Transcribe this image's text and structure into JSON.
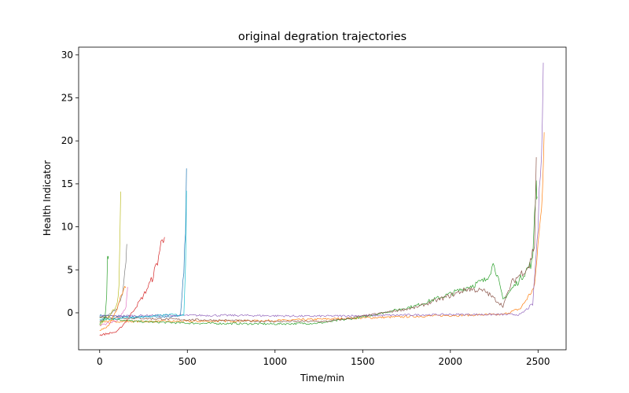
{
  "chart_data": {
    "type": "line",
    "title": "original degration trajectories",
    "xlabel": "Time/min",
    "ylabel": "Health Indicator",
    "xlim": [
      -120,
      2660
    ],
    "ylim": [
      -4.3,
      30.9
    ],
    "xticks": [
      0,
      500,
      1000,
      1500,
      2000,
      2500
    ],
    "yticks": [
      0,
      5,
      10,
      15,
      20,
      25,
      30
    ],
    "grid": false,
    "legend": "none",
    "series": [
      {
        "color": "#1f77b4",
        "points": [
          [
            0,
            -0.3
          ],
          [
            100,
            -0.4
          ],
          [
            200,
            -0.5
          ],
          [
            300,
            -0.4
          ],
          [
            400,
            -0.5
          ],
          [
            460,
            -0.3
          ],
          [
            470,
            2.0
          ],
          [
            480,
            5.0
          ],
          [
            490,
            10.0
          ],
          [
            495,
            16.8
          ]
        ]
      },
      {
        "color": "#ff7f0e",
        "points": [
          [
            0,
            -1.0
          ],
          [
            500,
            -1.0
          ],
          [
            1000,
            -0.9
          ],
          [
            1500,
            -0.6
          ],
          [
            2000,
            -0.3
          ],
          [
            2300,
            -0.2
          ],
          [
            2400,
            0.5
          ],
          [
            2480,
            3.0
          ],
          [
            2500,
            8.0
          ],
          [
            2520,
            12.0
          ],
          [
            2535,
            21.0
          ]
        ]
      },
      {
        "color": "#2ca02c",
        "points": [
          [
            0,
            -0.5
          ],
          [
            200,
            -1.0
          ],
          [
            500,
            -1.2
          ],
          [
            1000,
            -1.3
          ],
          [
            1250,
            -1.2
          ],
          [
            1500,
            -0.5
          ],
          [
            1800,
            0.8
          ],
          [
            2000,
            2.2
          ],
          [
            2200,
            3.8
          ],
          [
            2250,
            5.8
          ],
          [
            2300,
            1.5
          ],
          [
            2400,
            4.0
          ],
          [
            2470,
            6.0
          ],
          [
            2480,
            12.0
          ],
          [
            2490,
            15.0
          ],
          [
            2495,
            13.5
          ]
        ]
      },
      {
        "color": "#d62728",
        "points": [
          [
            0,
            -2.6
          ],
          [
            100,
            -2.2
          ],
          [
            150,
            -1.0
          ],
          [
            200,
            0.5
          ],
          [
            250,
            2.0
          ],
          [
            300,
            4.0
          ],
          [
            330,
            6.0
          ],
          [
            350,
            8.0
          ],
          [
            370,
            8.8
          ]
        ]
      },
      {
        "color": "#9467bd",
        "points": [
          [
            0,
            -0.4
          ],
          [
            300,
            -0.3
          ],
          [
            800,
            -0.3
          ],
          [
            1200,
            -0.4
          ],
          [
            1600,
            -0.3
          ],
          [
            2000,
            -0.2
          ],
          [
            2400,
            -0.2
          ],
          [
            2470,
            1.0
          ],
          [
            2500,
            10.0
          ],
          [
            2520,
            20.0
          ],
          [
            2530,
            29.1
          ]
        ]
      },
      {
        "color": "#8c564b",
        "points": [
          [
            0,
            -0.5
          ],
          [
            500,
            -0.8
          ],
          [
            1000,
            -1.0
          ],
          [
            1300,
            -1.0
          ],
          [
            1500,
            -0.4
          ],
          [
            1800,
            0.6
          ],
          [
            2000,
            2.0
          ],
          [
            2100,
            2.8
          ],
          [
            2200,
            2.5
          ],
          [
            2300,
            0.8
          ],
          [
            2350,
            3.5
          ],
          [
            2400,
            4.5
          ],
          [
            2450,
            5.5
          ],
          [
            2480,
            8.0
          ],
          [
            2490,
            18.1
          ]
        ]
      },
      {
        "color": "#e377c2",
        "points": [
          [
            0,
            -1.5
          ],
          [
            100,
            -0.9
          ],
          [
            150,
            0.5
          ],
          [
            160,
            3.0
          ]
        ]
      },
      {
        "color": "#7f7f7f",
        "points": [
          [
            0,
            -1.0
          ],
          [
            100,
            0.5
          ],
          [
            130,
            2.0
          ],
          [
            150,
            6.0
          ],
          [
            155,
            8.0
          ]
        ]
      },
      {
        "color": "#bcbd22",
        "points": [
          [
            0,
            -1.5
          ],
          [
            50,
            -0.5
          ],
          [
            100,
            1.0
          ],
          [
            110,
            3.0
          ],
          [
            120,
            14.1
          ]
        ]
      },
      {
        "color": "#17becf",
        "points": [
          [
            0,
            -0.8
          ],
          [
            300,
            -0.4
          ],
          [
            400,
            -0.2
          ],
          [
            480,
            -0.3
          ],
          [
            490,
            6.0
          ],
          [
            495,
            14.2
          ]
        ]
      },
      {
        "color": "#2ca02c",
        "points": [
          [
            0,
            -1.3
          ],
          [
            30,
            -0.5
          ],
          [
            40,
            2.0
          ],
          [
            45,
            6.0
          ],
          [
            50,
            6.6
          ]
        ]
      },
      {
        "color": "#ff7f0e",
        "points": [
          [
            0,
            -2.0
          ],
          [
            50,
            -1.5
          ],
          [
            100,
            0.5
          ],
          [
            130,
            2.5
          ],
          [
            150,
            2.9
          ]
        ]
      }
    ]
  }
}
